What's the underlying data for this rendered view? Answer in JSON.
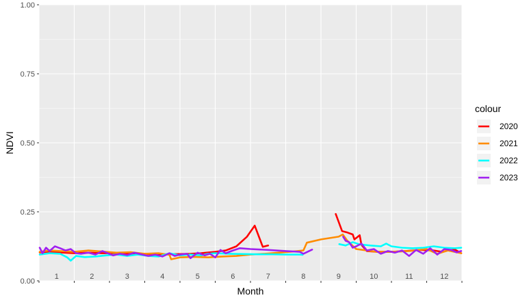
{
  "chart_data": {
    "type": "line",
    "title": "",
    "xlabel": "Month",
    "ylabel": "NDVI",
    "xlim": [
      1,
      13
    ],
    "ylim": [
      0,
      1
    ],
    "y_ticks": [
      0,
      0.25,
      0.5,
      0.75,
      1
    ],
    "y_tick_labels": [
      "0.00",
      "0.25",
      "0.50",
      "0.75",
      "1.00"
    ],
    "x_month_labels": [
      "1",
      "2",
      "3",
      "4",
      "5",
      "6",
      "7",
      "8",
      "9",
      "10",
      "11",
      "12"
    ],
    "grid": true,
    "legend": {
      "title": "colour",
      "position": "right"
    },
    "series": [
      {
        "name": "2020",
        "color": "#ff0000",
        "segments": [
          [
            [
              1.02,
              0.103
            ],
            [
              1.3,
              0.105
            ],
            [
              1.6,
              0.103
            ],
            [
              2.0,
              0.1
            ],
            [
              2.4,
              0.102
            ],
            [
              2.8,
              0.1
            ],
            [
              3.2,
              0.1
            ],
            [
              3.6,
              0.098
            ],
            [
              4.0,
              0.098
            ],
            [
              4.3,
              0.095
            ],
            [
              4.6,
              0.096
            ],
            [
              5.0,
              0.097
            ],
            [
              5.3,
              0.098
            ],
            [
              5.6,
              0.1
            ],
            [
              6.0,
              0.105
            ],
            [
              6.3,
              0.11
            ],
            [
              6.6,
              0.125
            ],
            [
              6.9,
              0.16
            ],
            [
              7.12,
              0.2
            ],
            [
              7.35,
              0.123
            ],
            [
              7.5,
              0.128
            ]
          ],
          [
            [
              9.42,
              0.242
            ],
            [
              9.6,
              0.18
            ],
            [
              9.75,
              0.175
            ],
            [
              9.9,
              0.168
            ],
            [
              9.95,
              0.15
            ],
            [
              10.1,
              0.165
            ],
            [
              10.15,
              0.13
            ],
            [
              10.3,
              0.108
            ],
            [
              10.6,
              0.105
            ],
            [
              11.0,
              0.105
            ],
            [
              11.4,
              0.108
            ],
            [
              11.8,
              0.112
            ],
            [
              12.2,
              0.11
            ],
            [
              12.45,
              0.105
            ],
            [
              12.6,
              0.11
            ],
            [
              12.8,
              0.113
            ],
            [
              12.98,
              0.1
            ]
          ]
        ]
      },
      {
        "name": "2021",
        "color": "#ff8c00",
        "segments": [
          [
            [
              1.02,
              0.105
            ],
            [
              1.3,
              0.11
            ],
            [
              1.6,
              0.108
            ],
            [
              2.0,
              0.105
            ],
            [
              2.4,
              0.11
            ],
            [
              2.8,
              0.106
            ],
            [
              3.2,
              0.102
            ],
            [
              3.6,
              0.104
            ],
            [
              4.0,
              0.098
            ],
            [
              4.4,
              0.1
            ],
            [
              4.7,
              0.094
            ],
            [
              4.75,
              0.078
            ],
            [
              5.0,
              0.085
            ],
            [
              5.4,
              0.087
            ],
            [
              5.8,
              0.085
            ],
            [
              6.2,
              0.088
            ],
            [
              6.6,
              0.09
            ],
            [
              7.0,
              0.095
            ],
            [
              7.4,
              0.098
            ],
            [
              7.8,
              0.102
            ],
            [
              8.2,
              0.106
            ],
            [
              8.5,
              0.11
            ],
            [
              8.6,
              0.138
            ],
            [
              9.0,
              0.15
            ],
            [
              9.5,
              0.16
            ],
            [
              9.62,
              0.168
            ],
            [
              9.75,
              0.145
            ],
            [
              10.0,
              0.115
            ],
            [
              10.3,
              0.11
            ],
            [
              10.6,
              0.105
            ],
            [
              11.0,
              0.105
            ],
            [
              11.5,
              0.108
            ],
            [
              12.0,
              0.115
            ],
            [
              12.3,
              0.098
            ],
            [
              12.6,
              0.11
            ],
            [
              12.98,
              0.1
            ]
          ]
        ]
      },
      {
        "name": "2022",
        "color": "#00ffff",
        "segments": [
          [
            [
              1.02,
              0.095
            ],
            [
              1.3,
              0.1
            ],
            [
              1.6,
              0.098
            ],
            [
              1.8,
              0.085
            ],
            [
              1.9,
              0.073
            ],
            [
              2.05,
              0.09
            ],
            [
              2.3,
              0.086
            ],
            [
              2.6,
              0.088
            ],
            [
              2.9,
              0.092
            ],
            [
              3.2,
              0.095
            ],
            [
              3.5,
              0.09
            ],
            [
              3.8,
              0.095
            ],
            [
              4.1,
              0.09
            ],
            [
              4.4,
              0.088
            ],
            [
              4.7,
              0.1
            ],
            [
              5.0,
              0.092
            ],
            [
              5.3,
              0.095
            ],
            [
              5.6,
              0.092
            ],
            [
              5.8,
              0.098
            ],
            [
              6.0,
              0.1
            ],
            [
              6.4,
              0.098
            ],
            [
              6.8,
              0.097
            ],
            [
              7.2,
              0.096
            ],
            [
              7.6,
              0.096
            ],
            [
              8.0,
              0.095
            ],
            [
              8.4,
              0.095
            ],
            [
              8.48,
              0.094
            ]
          ],
          [
            [
              9.52,
              0.133
            ],
            [
              9.7,
              0.128
            ],
            [
              9.9,
              0.14
            ],
            [
              10.1,
              0.132
            ],
            [
              10.4,
              0.128
            ],
            [
              10.7,
              0.125
            ],
            [
              10.85,
              0.135
            ],
            [
              11.0,
              0.125
            ],
            [
              11.3,
              0.12
            ],
            [
              11.6,
              0.118
            ],
            [
              11.9,
              0.12
            ],
            [
              12.2,
              0.125
            ],
            [
              12.5,
              0.12
            ],
            [
              12.8,
              0.118
            ],
            [
              12.98,
              0.12
            ]
          ]
        ]
      },
      {
        "name": "2023",
        "color": "#a020f0",
        "segments": [
          [
            [
              1.02,
              0.12
            ],
            [
              1.1,
              0.1
            ],
            [
              1.2,
              0.12
            ],
            [
              1.3,
              0.108
            ],
            [
              1.45,
              0.125
            ],
            [
              1.6,
              0.118
            ],
            [
              1.75,
              0.11
            ],
            [
              1.9,
              0.115
            ],
            [
              2.05,
              0.1
            ],
            [
              2.2,
              0.098
            ],
            [
              2.4,
              0.102
            ],
            [
              2.6,
              0.095
            ],
            [
              2.8,
              0.108
            ],
            [
              2.95,
              0.1
            ],
            [
              3.1,
              0.092
            ],
            [
              3.3,
              0.098
            ],
            [
              3.5,
              0.093
            ],
            [
              3.7,
              0.102
            ],
            [
              3.9,
              0.096
            ],
            [
              4.1,
              0.09
            ],
            [
              4.3,
              0.095
            ],
            [
              4.5,
              0.088
            ],
            [
              4.7,
              0.1
            ],
            [
              4.85,
              0.09
            ],
            [
              5.0,
              0.095
            ],
            [
              5.2,
              0.098
            ],
            [
              5.3,
              0.082
            ],
            [
              5.5,
              0.102
            ],
            [
              5.7,
              0.092
            ],
            [
              5.85,
              0.098
            ],
            [
              6.0,
              0.085
            ],
            [
              6.15,
              0.112
            ],
            [
              6.3,
              0.1
            ],
            [
              6.5,
              0.11
            ],
            [
              6.7,
              0.118
            ],
            [
              7.0,
              0.115
            ],
            [
              7.5,
              0.112
            ],
            [
              8.0,
              0.108
            ],
            [
              8.4,
              0.105
            ],
            [
              8.5,
              0.098
            ],
            [
              8.75,
              0.113
            ]
          ],
          [
            [
              9.63,
              0.16
            ],
            [
              9.7,
              0.145
            ],
            [
              9.8,
              0.14
            ],
            [
              9.9,
              0.12
            ],
            [
              10.0,
              0.125
            ],
            [
              10.15,
              0.135
            ],
            [
              10.3,
              0.11
            ],
            [
              10.5,
              0.115
            ],
            [
              10.7,
              0.098
            ],
            [
              10.9,
              0.108
            ],
            [
              11.1,
              0.102
            ],
            [
              11.3,
              0.11
            ],
            [
              11.5,
              0.09
            ],
            [
              11.7,
              0.112
            ],
            [
              11.9,
              0.098
            ],
            [
              12.1,
              0.118
            ],
            [
              12.3,
              0.095
            ],
            [
              12.5,
              0.115
            ],
            [
              12.7,
              0.112
            ],
            [
              12.85,
              0.103
            ],
            [
              12.98,
              0.108
            ]
          ]
        ]
      }
    ]
  }
}
